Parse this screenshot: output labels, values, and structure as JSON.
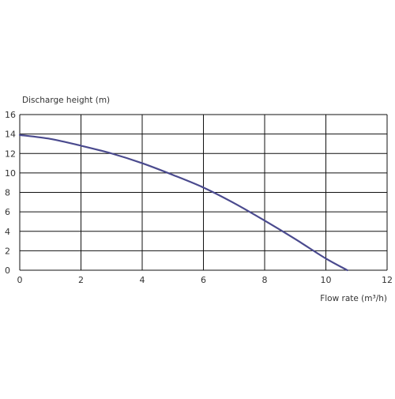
{
  "chart_data": {
    "type": "line",
    "ylabel": "Discharge height (m)",
    "xlabel": "Flow rate (m³/h)",
    "xlim": [
      0,
      12
    ],
    "ylim": [
      0,
      16
    ],
    "x_ticks": [
      "0",
      "2",
      "4",
      "6",
      "8",
      "10",
      "12"
    ],
    "y_ticks": [
      "0",
      "2",
      "4",
      "6",
      "8",
      "10",
      "12",
      "14",
      "16"
    ],
    "grid": true,
    "series": [
      {
        "color": "#4a4a8e",
        "x": [
          0,
          1,
          2,
          3,
          4,
          5,
          6,
          7,
          8,
          9,
          10,
          10.7
        ],
        "y": [
          13.9,
          13.5,
          12.8,
          12.0,
          11.0,
          9.8,
          8.5,
          6.9,
          5.1,
          3.2,
          1.2,
          0
        ]
      }
    ]
  }
}
